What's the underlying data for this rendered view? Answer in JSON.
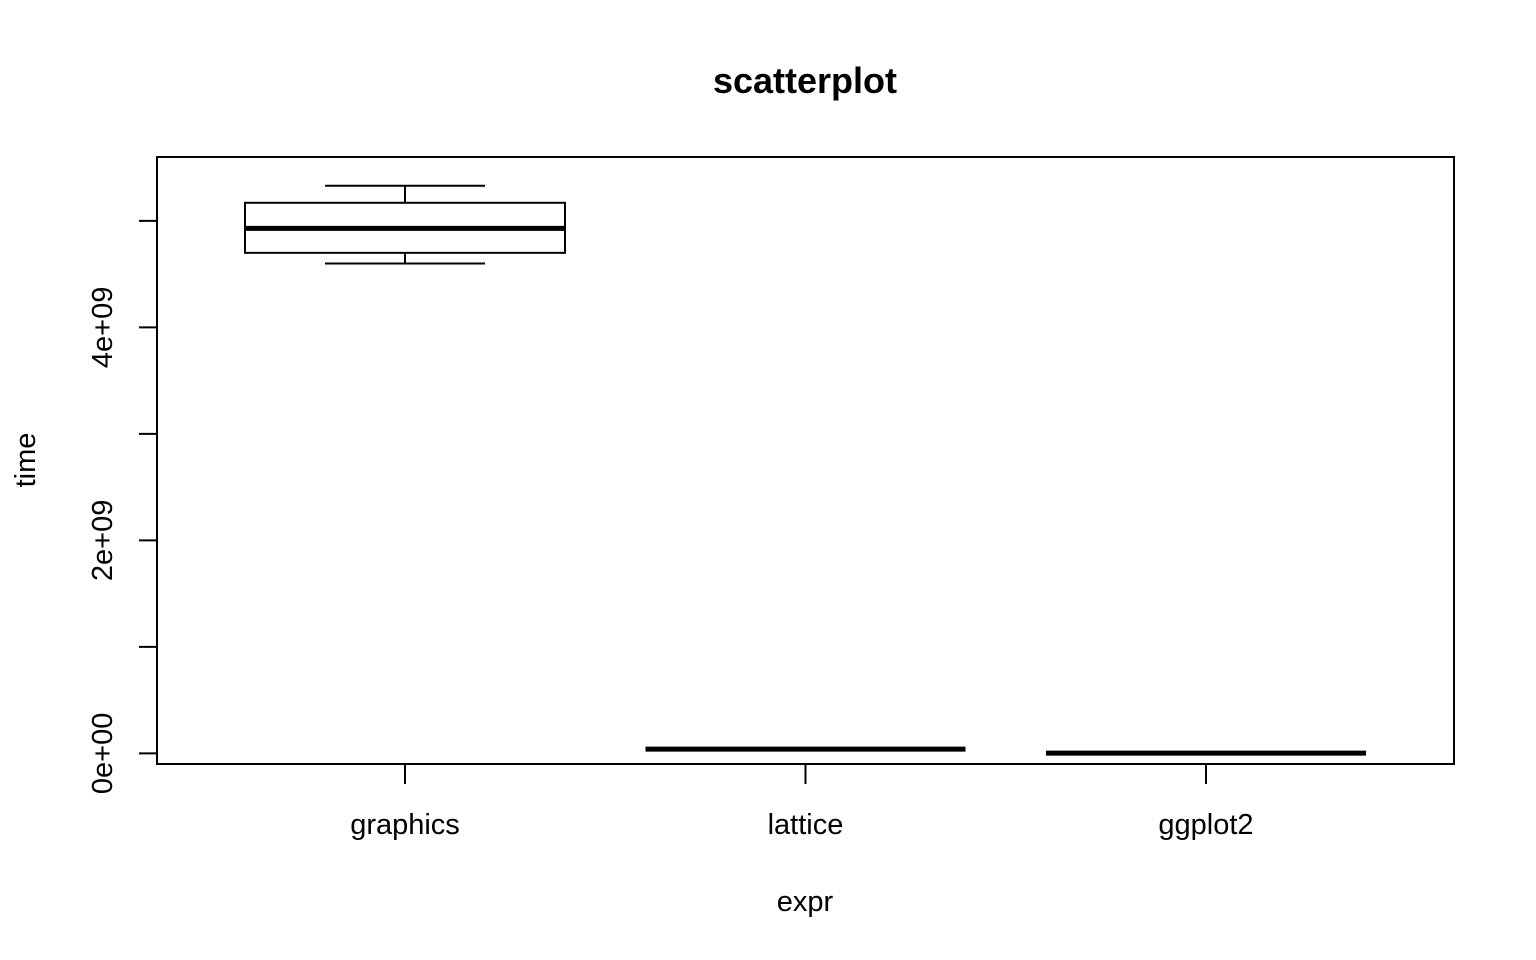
{
  "chart_data": {
    "type": "boxplot",
    "title": "scatterplot",
    "xlabel": "expr",
    "ylabel": "time",
    "categories": [
      "graphics",
      "lattice",
      "ggplot2"
    ],
    "boxes": [
      {
        "name": "graphics",
        "min": 4600000000.0,
        "q1": 4700000000.0,
        "median": 4930000000.0,
        "q3": 5170000000.0,
        "max": 5330000000.0
      },
      {
        "name": "lattice",
        "min": 40000000.0,
        "q1": 40000000.0,
        "median": 40000000.0,
        "q3": 40000000.0,
        "max": 40000000.0
      },
      {
        "name": "ggplot2",
        "min": 2000000.0,
        "q1": 2000000.0,
        "median": 2000000.0,
        "q3": 2000000.0,
        "max": 2000000.0
      }
    ],
    "yticks": [
      0,
      1000000000.0,
      2000000000.0,
      3000000000.0,
      4000000000.0,
      5000000000.0
    ],
    "ytick_labels": [
      "0e+00",
      "",
      "2e+09",
      "",
      "4e+09",
      ""
    ],
    "ylim": [
      -100000000.0,
      5600000000.0
    ],
    "grid": false
  }
}
